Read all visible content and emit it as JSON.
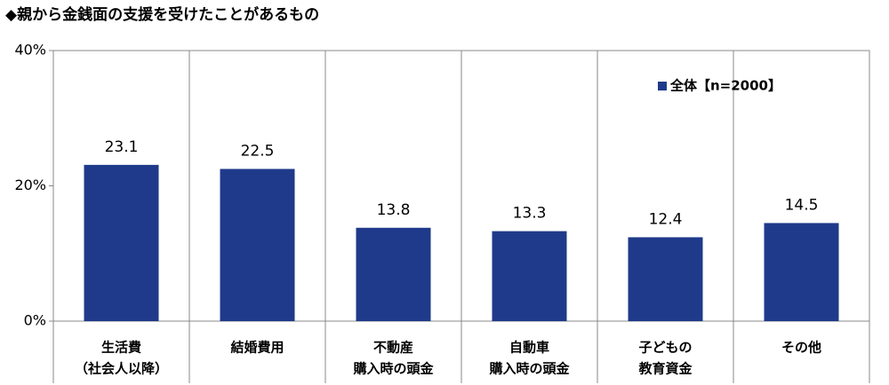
{
  "chart_data": {
    "type": "bar",
    "title": "◆親から金銭面の支援を受けたことがあるもの",
    "categories": [
      [
        "生活費",
        "（社会人以降）"
      ],
      [
        "結婚費用"
      ],
      [
        "不動産",
        "購入時の頭金"
      ],
      [
        "自動車",
        "購入時の頭金"
      ],
      [
        "子どもの",
        "教育資金"
      ],
      [
        "その他"
      ]
    ],
    "series": [
      {
        "name": "全体【n=2000】",
        "color": "#1f3a8a",
        "values": [
          23.1,
          22.5,
          13.8,
          13.3,
          12.4,
          14.5
        ]
      }
    ],
    "ylim": [
      0,
      40
    ],
    "yticks": [
      {
        "value": 0,
        "label": "0%"
      },
      {
        "value": 20,
        "label": "20%"
      },
      {
        "value": 40,
        "label": "40%"
      }
    ],
    "legend": "upper-right"
  }
}
